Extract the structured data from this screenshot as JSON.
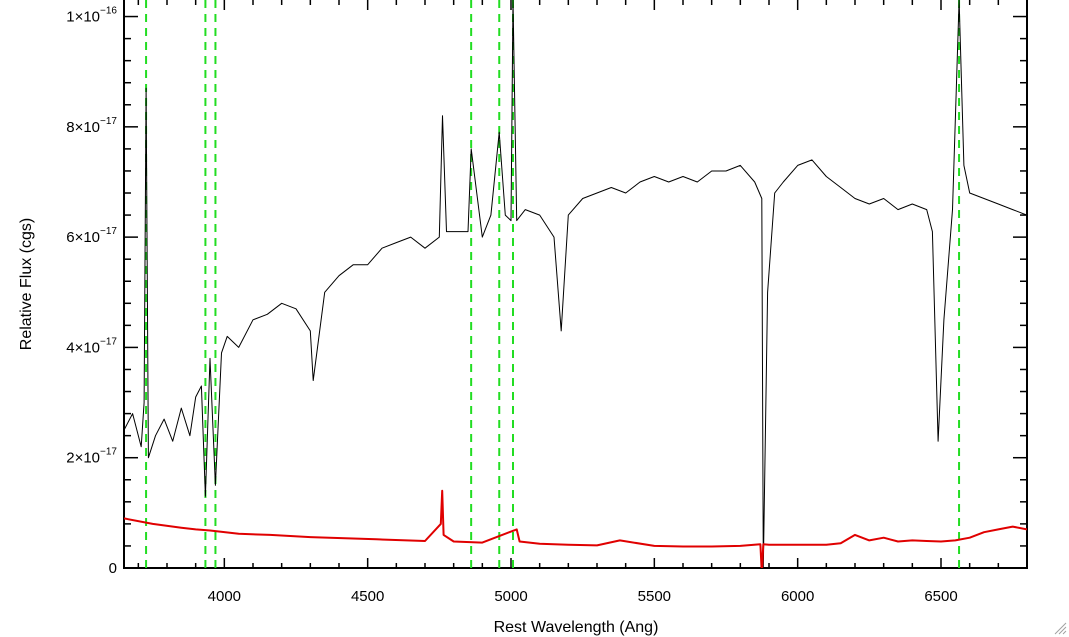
{
  "chart_data": {
    "type": "line",
    "title": "",
    "xlabel": "Rest Wavelength (Ang)",
    "ylabel": "Relative Flux (cgs)",
    "xlim": [
      3650,
      6800
    ],
    "ylim": [
      0,
      1.03e-16
    ],
    "x_ticks": [
      4000,
      4500,
      5000,
      5500,
      6000,
      6500
    ],
    "x_tick_labels": [
      "4000",
      "4500",
      "5000",
      "5500",
      "6000",
      "6500"
    ],
    "y_ticks": [
      0,
      2e-17,
      4e-17,
      6e-17,
      8e-17,
      1e-16
    ],
    "y_tick_labels": [
      {
        "mantissa": "0",
        "exponent": ""
      },
      {
        "mantissa": "2×10",
        "exponent": "−17"
      },
      {
        "mantissa": "4×10",
        "exponent": "−17"
      },
      {
        "mantissa": "6×10",
        "exponent": "−17"
      },
      {
        "mantissa": "8×10",
        "exponent": "−17"
      },
      {
        "mantissa": "1×10",
        "exponent": "−16"
      }
    ],
    "grid": false,
    "legend": "none",
    "vertical_lines": [
      3727,
      3934,
      3969,
      4861,
      4959,
      5007,
      6563
    ],
    "series": [
      {
        "color": "#000000",
        "style": "solid",
        "x": [
          3650,
          3680,
          3710,
          3720,
          3727,
          3735,
          3760,
          3790,
          3820,
          3850,
          3880,
          3900,
          3920,
          3934,
          3950,
          3969,
          3990,
          4010,
          4050,
          4100,
          4150,
          4200,
          4250,
          4300,
          4310,
          4350,
          4400,
          4450,
          4500,
          4550,
          4600,
          4650,
          4700,
          4750,
          4761,
          4775,
          4800,
          4850,
          4861,
          4900,
          4930,
          4959,
          4980,
          5000,
          5007,
          5020,
          5050,
          5100,
          5150,
          5175,
          5200,
          5250,
          5300,
          5350,
          5400,
          5450,
          5500,
          5550,
          5600,
          5650,
          5700,
          5750,
          5800,
          5850,
          5875,
          5880,
          5895,
          5920,
          5950,
          6000,
          6050,
          6100,
          6150,
          6200,
          6250,
          6300,
          6350,
          6400,
          6450,
          6470,
          6490,
          6510,
          6540,
          6563,
          6580,
          6600,
          6650,
          6700,
          6750,
          6800
        ],
        "y": [
          2.5e-17,
          2.8e-17,
          2.2e-17,
          3e-17,
          8.7e-17,
          2e-17,
          2.4e-17,
          2.7e-17,
          2.3e-17,
          2.9e-17,
          2.4e-17,
          3.1e-17,
          3.3e-17,
          1.3e-17,
          3.8e-17,
          1.5e-17,
          3.9e-17,
          4.2e-17,
          4e-17,
          4.5e-17,
          4.6e-17,
          4.8e-17,
          4.7e-17,
          4.3e-17,
          3.4e-17,
          5e-17,
          5.3e-17,
          5.5e-17,
          5.5e-17,
          5.8e-17,
          5.9e-17,
          6e-17,
          5.8e-17,
          6e-17,
          8.2e-17,
          6.1e-17,
          6.1e-17,
          6.1e-17,
          7.6e-17,
          6e-17,
          6.4e-17,
          7.9e-17,
          6.4e-17,
          6.3e-17,
          1.03e-16,
          6.3e-17,
          6.5e-17,
          6.4e-17,
          6e-17,
          4.3e-17,
          6.4e-17,
          6.7e-17,
          6.8e-17,
          6.9e-17,
          6.8e-17,
          7e-17,
          7.1e-17,
          7e-17,
          7.1e-17,
          7e-17,
          7.2e-17,
          7.2e-17,
          7.3e-17,
          7e-17,
          6.7e-17,
          0.0,
          5e-17,
          6.8e-17,
          7e-17,
          7.3e-17,
          7.4e-17,
          7.1e-17,
          6.9e-17,
          6.7e-17,
          6.6e-17,
          6.7e-17,
          6.5e-17,
          6.6e-17,
          6.5e-17,
          6.1e-17,
          2.3e-17,
          4.5e-17,
          6.5e-17,
          1.03e-16,
          7.3e-17,
          6.8e-17,
          6.7e-17,
          6.6e-17,
          6.5e-17,
          6.4e-17
        ]
      },
      {
        "color": "#e00000",
        "style": "solid",
        "x": [
          3650,
          3750,
          3850,
          3900,
          3950,
          4050,
          4160,
          4300,
          4530,
          4700,
          4755,
          4760,
          4765,
          4800,
          4900,
          5020,
          5030,
          5100,
          5200,
          5300,
          5380,
          5500,
          5600,
          5700,
          5800,
          5870,
          5875,
          5880,
          5900,
          6000,
          6100,
          6150,
          6200,
          6250,
          6300,
          6350,
          6400,
          6450,
          6500,
          6550,
          6600,
          6650,
          6700,
          6750,
          6800
        ],
        "y": [
          9e-18,
          8e-18,
          7.3e-18,
          7e-18,
          6.8e-18,
          6.2e-18,
          6e-18,
          5.6e-18,
          5.2e-18,
          4.9e-18,
          8e-18,
          1.4e-17,
          6e-18,
          4.8e-18,
          4.6e-18,
          7e-18,
          4.8e-18,
          4.4e-18,
          4.2e-18,
          4.1e-18,
          5e-18,
          4e-18,
          3.9e-18,
          3.9e-18,
          4e-18,
          4.3e-18,
          -1e-18,
          4.3e-18,
          4.2e-18,
          4.2e-18,
          4.2e-18,
          4.5e-18,
          6e-18,
          5e-18,
          5.5e-18,
          4.8e-18,
          5e-18,
          4.9e-18,
          4.8e-18,
          5e-18,
          5.5e-18,
          6.5e-18,
          7e-18,
          7.5e-18,
          7e-18
        ]
      }
    ]
  }
}
